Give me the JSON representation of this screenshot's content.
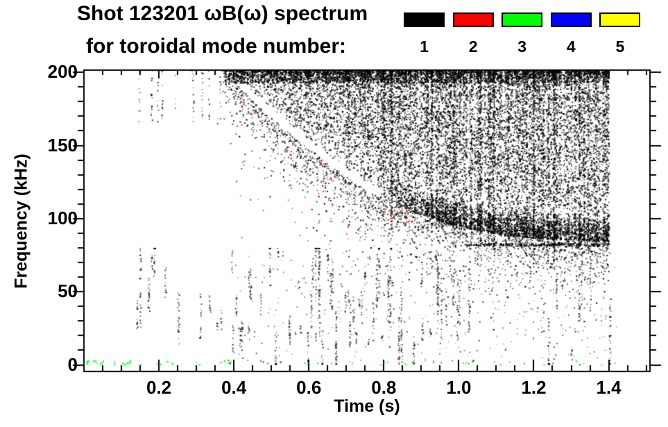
{
  "header": {
    "title_line1": "Shot 123201 ωB(ω) spectrum",
    "title_line2": "for toroidal mode number:"
  },
  "legend": {
    "entries": [
      {
        "label": "1",
        "color": "#000000"
      },
      {
        "label": "2",
        "color": "#FF0000"
      },
      {
        "label": "3",
        "color": "#00FF00"
      },
      {
        "label": "4",
        "color": "#0000FF"
      },
      {
        "label": "5",
        "color": "#FFFF00"
      }
    ]
  },
  "axes": {
    "x_label": "Time (s)",
    "y_label": "Frequency (kHz)",
    "x_tick_labels": [
      "0.2",
      "0.4",
      "0.6",
      "0.8",
      "1.0",
      "1.2",
      "1.4"
    ],
    "y_tick_labels": [
      "0",
      "50",
      "100",
      "150",
      "200"
    ]
  },
  "chart_data": {
    "type": "scatter",
    "title": "Shot 123201 ωB(ω) spectrum",
    "subtitle": "for toroidal mode number: 1 2 3 4 5",
    "xlabel": "Time (s)",
    "ylabel": "Frequency (kHz)",
    "xlim": [
      0,
      1.51
    ],
    "ylim": [
      -4.5,
      201.5
    ],
    "x_major_ticks": [
      0.2,
      0.4,
      0.6,
      0.8,
      1.0,
      1.2,
      1.4
    ],
    "x_minor_step": 0.05,
    "y_major_ticks": [
      0,
      50,
      100,
      150,
      200
    ],
    "y_minor_step": 10,
    "grid": false,
    "legend_position": "top-right",
    "series": [
      {
        "name": "1",
        "color": "#000000",
        "description": "dominant broadband speckle band: upper edge 200 kHz, lower edge falls from ~200 kHz at t=0.4 s to ~85 kHz by t=1.0-1.4 s; data ends at t=1.40 s; sparse vertical streaks at 0-80 kHz throughout"
      },
      {
        "name": "2",
        "color": "#FF0000",
        "description": "sparse points along lower edge of band, t~0.38-0.9 s"
      },
      {
        "name": "3",
        "color": "#00FF00",
        "description": "sparse points near 0-3 kHz, t~0-1.35 s"
      },
      {
        "name": "4",
        "color": "#0000FF",
        "description": "not visibly present in plot"
      },
      {
        "name": "5",
        "color": "#FFFF00",
        "description": "not visibly present in plot"
      }
    ],
    "spectrogram": {
      "dense_band": {
        "t_start": 0.37,
        "t_end": 1.4,
        "f_top": 203,
        "lower_envelope_t": [
          0.37,
          0.45,
          0.55,
          0.65,
          0.75,
          0.85,
          0.95,
          1.05,
          1.15,
          1.25,
          1.4
        ],
        "lower_envelope_f": [
          203,
          180,
          158,
          138,
          120,
          107,
          98,
          92,
          88,
          86,
          85
        ]
      },
      "top_edge_band_f": [
        193,
        203
      ],
      "low_freq_streaks": {
        "t_range": [
          0.12,
          1.42
        ],
        "f_range": [
          1,
          80
        ]
      },
      "near_zero_green_dots": {
        "t_range": [
          0.005,
          1.35
        ],
        "f_range": [
          0,
          3
        ],
        "mode": 3
      },
      "edge_line_late": {
        "t_range": [
          1.02,
          1.4
        ],
        "f": 82.5
      },
      "red_transition_dots": {
        "t_range": [
          0.37,
          0.92
        ],
        "mode": 2
      },
      "visible_modes": [
        1,
        2,
        3
      ]
    },
    "gen": {
      "seed": 123201,
      "col_dt": 0.002,
      "top_band_base": 17,
      "cloud_base": 46,
      "lowband_base": 15,
      "trans_base": 6,
      "trans_tail_khz": 14,
      "red_fraction": 0.055,
      "streak_dark_prob": 0.08,
      "streak_dark_mult": 2.2,
      "streak_light_prob": 0.06,
      "streak_light_mult": 0.25,
      "early_streaks": 14,
      "low_streaks": 95,
      "sparse_low_dots": 330,
      "green_dots": 58,
      "bottom_black_dots": 26,
      "edge_line_prob": 0.7
    }
  }
}
